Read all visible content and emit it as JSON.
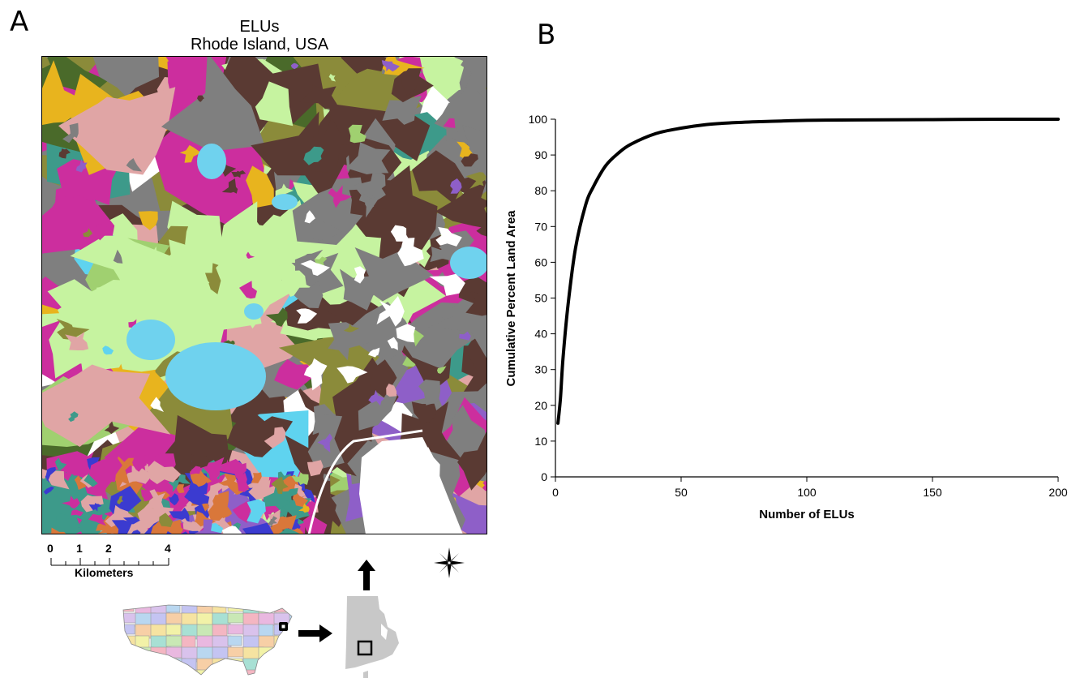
{
  "panel_a": {
    "letter": "A",
    "title_line1": "ELUs",
    "title_line2": "Rhode Island, USA",
    "scale_bar": {
      "ticks": [
        "0",
        "1",
        "2",
        "4"
      ],
      "unit": "Kilometers"
    },
    "icons": [
      "compass-rose-icon",
      "arrow-right-icon",
      "arrow-up-icon"
    ],
    "palette": {
      "dark_brown": "#5a3a33",
      "gray": "#7f7f7f",
      "light_green": "#c6f3a0",
      "olive": "#8b8b3a",
      "gold": "#e8b41e",
      "magenta": "#cc2e9e",
      "cyan": "#5fd3ef",
      "teal": "#3d9a8a",
      "purple": "#8e5fc8",
      "pink": "#e0a5a5",
      "orange": "#d9773a",
      "water": "#6fd2ee"
    }
  },
  "panel_b": {
    "letter": "B"
  },
  "chart_data": {
    "type": "line",
    "title": "",
    "xlabel": "Number of ELUs",
    "ylabel": "Cumulative Percent Land Area",
    "xlim": [
      0,
      200
    ],
    "ylim": [
      0,
      100
    ],
    "x_ticks": [
      0,
      50,
      100,
      150,
      200
    ],
    "y_ticks": [
      0,
      10,
      20,
      30,
      40,
      50,
      60,
      70,
      80,
      90,
      100
    ],
    "grid": false,
    "legend": "none",
    "series": [
      {
        "x": [
          1,
          2,
          3,
          5,
          8,
          12,
          15,
          20,
          25,
          30,
          40,
          50,
          60,
          70,
          80,
          90,
          100,
          120,
          150,
          180,
          200
        ],
        "values": [
          15,
          22,
          33,
          48,
          64,
          76,
          81,
          87,
          90.5,
          93,
          96,
          97.5,
          98.5,
          99,
          99.3,
          99.5,
          99.7,
          99.8,
          99.9,
          100,
          100
        ]
      }
    ]
  }
}
